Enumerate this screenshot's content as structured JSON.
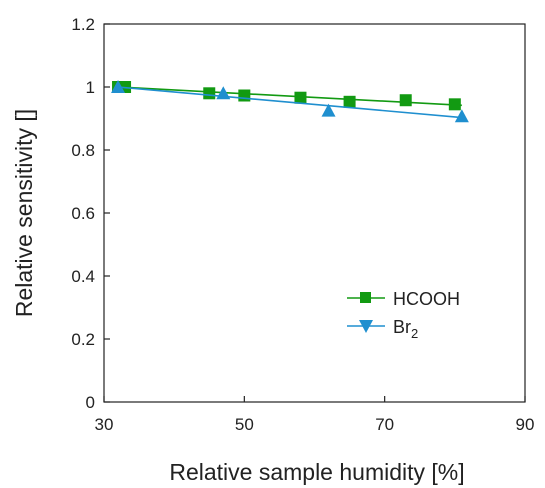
{
  "chart_data": {
    "type": "scatter",
    "title": "",
    "xlabel": "Relative sample humidity [%]",
    "ylabel": "Relative sensitivity []",
    "xlim": [
      30,
      90
    ],
    "ylim": [
      0,
      1.2
    ],
    "xticks": [
      "30",
      "50",
      "70",
      "90"
    ],
    "yticks": [
      "0",
      "0.2",
      "0.4",
      "0.6",
      "0.8",
      "1",
      "1.2"
    ],
    "xtick_values": [
      30,
      50,
      70,
      90
    ],
    "ytick_values": [
      0,
      0.2,
      0.4,
      0.6,
      0.8,
      1.0,
      1.2
    ],
    "grid": false,
    "legend_position": "lower-right",
    "series": [
      {
        "name": "HCOOH",
        "marker": "square",
        "color": "#129a12",
        "x": [
          32,
          33,
          45,
          50,
          58,
          65,
          73,
          80
        ],
        "y": [
          1.0,
          1.0,
          0.98,
          0.973,
          0.966,
          0.953,
          0.958,
          0.945
        ],
        "fit_x": [
          32,
          81
        ],
        "fit_y": [
          1.0,
          0.942
        ]
      },
      {
        "name": "Br",
        "name_subscript": "2",
        "marker": "triangle-down",
        "color": "#1f8fcf",
        "x": [
          32,
          47,
          62,
          81
        ],
        "y": [
          1.0,
          0.98,
          0.925,
          0.907
        ],
        "fit_x": [
          32,
          81
        ],
        "fit_y": [
          1.0,
          0.903
        ]
      }
    ]
  }
}
